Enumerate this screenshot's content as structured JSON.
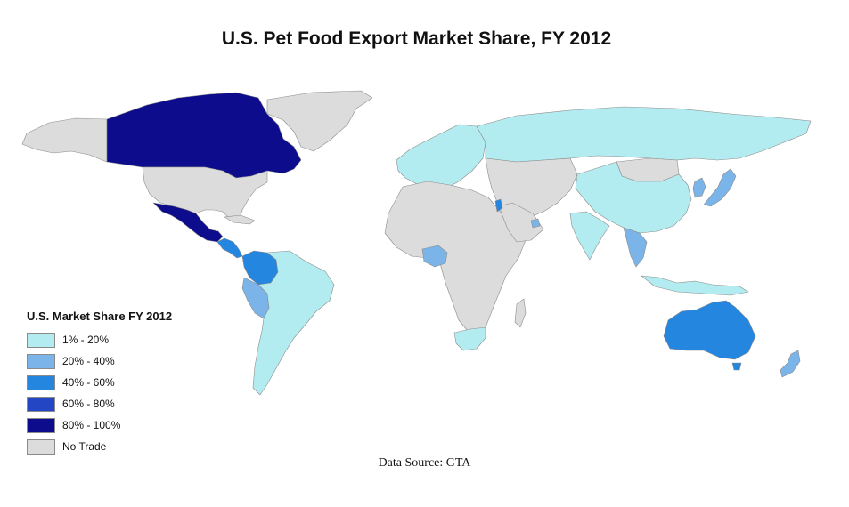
{
  "title": "U.S. Pet Food Export Market Share, FY 2012",
  "source": "Data Source: GTA",
  "legend": {
    "title": "U.S. Market Share FY 2012",
    "items": [
      {
        "label": "1% - 20%",
        "color": "#b3ecf0"
      },
      {
        "label": "20% - 40%",
        "color": "#7bb4e8"
      },
      {
        "label": "40% - 60%",
        "color": "#2586e0"
      },
      {
        "label": "60% - 80%",
        "color": "#2346c4"
      },
      {
        "label": "80% - 100%",
        "color": "#0c0c8c"
      },
      {
        "label": "No Trade",
        "color": "#dcdcdc"
      }
    ]
  },
  "regions": [
    {
      "name": "Canada",
      "category": "80% - 100%"
    },
    {
      "name": "Mexico",
      "category": "80% - 100%"
    },
    {
      "name": "United States",
      "category": "No Trade"
    },
    {
      "name": "Greenland",
      "category": "No Trade"
    },
    {
      "name": "Colombia",
      "category": "40% - 60%"
    },
    {
      "name": "Peru",
      "category": "20% - 40%"
    },
    {
      "name": "Costa Rica",
      "category": "40% - 60%"
    },
    {
      "name": "South America (other)",
      "category": "1% - 20%"
    },
    {
      "name": "Europe",
      "category": "1% - 20%"
    },
    {
      "name": "Russia",
      "category": "1% - 20%"
    },
    {
      "name": "China",
      "category": "1% - 20%"
    },
    {
      "name": "Mongolia",
      "category": "No Trade"
    },
    {
      "name": "Japan",
      "category": "20% - 40%"
    },
    {
      "name": "South Korea",
      "category": "20% - 40%"
    },
    {
      "name": "Thailand",
      "category": "20% - 40%"
    },
    {
      "name": "Nigeria",
      "category": "20% - 40%"
    },
    {
      "name": "Israel",
      "category": "40% - 60%"
    },
    {
      "name": "United Arab Emirates",
      "category": "20% - 40%"
    },
    {
      "name": "South Africa",
      "category": "1% - 20%"
    },
    {
      "name": "Africa (other)",
      "category": "No Trade"
    },
    {
      "name": "Middle East (other)",
      "category": "No Trade"
    },
    {
      "name": "India",
      "category": "1% - 20%"
    },
    {
      "name": "Indonesia",
      "category": "1% - 20%"
    },
    {
      "name": "Australia",
      "category": "40% - 60%"
    },
    {
      "name": "New Zealand",
      "category": "20% - 40%"
    }
  ]
}
